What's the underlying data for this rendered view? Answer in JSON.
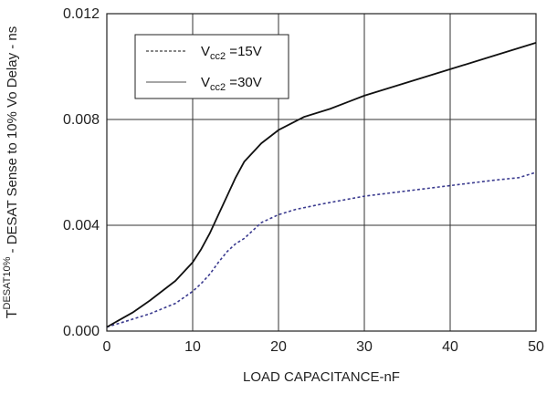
{
  "chart_data": {
    "type": "line",
    "title": "",
    "xlabel": "LOAD CAPACITANCE-nF",
    "ylabel": {
      "prefix": "T",
      "sup": "DESAT10%",
      "text": " - DESAT Sense to 10% Vo Delay - ns"
    },
    "xlim": [
      0,
      50
    ],
    "ylim": [
      0,
      0.012
    ],
    "x_ticks": [
      0,
      10,
      20,
      30,
      40,
      50
    ],
    "x_tick_labels": [
      "0",
      "10",
      "20",
      "30",
      "40",
      "50"
    ],
    "y_ticks": [
      0,
      0.004,
      0.008,
      0.012
    ],
    "y_tick_labels": [
      "0.000",
      "0.004",
      "0.008",
      "0.012"
    ],
    "grid": true,
    "legend_position": "top-left",
    "series": [
      {
        "legend_dash": "-------",
        "legend_main": "V",
        "legend_sub": "cc2",
        "legend_tail": " =15V",
        "color": "#3b3b8f",
        "style": "dashed",
        "x": [
          0,
          2,
          5,
          8,
          10,
          11,
          12,
          13,
          14,
          15,
          16,
          18,
          20,
          22,
          25,
          30,
          35,
          40,
          45,
          48,
          50
        ],
        "y": [
          0.00015,
          0.00035,
          0.00065,
          0.00105,
          0.0015,
          0.0018,
          0.00215,
          0.0026,
          0.003,
          0.0033,
          0.0035,
          0.0041,
          0.0044,
          0.0046,
          0.0048,
          0.0051,
          0.0053,
          0.0055,
          0.0057,
          0.0058,
          0.006
        ]
      },
      {
        "legend_dash": "",
        "legend_main": "V",
        "legend_sub": "cc2",
        "legend_tail": " =30V",
        "color": "#111111",
        "style": "solid",
        "x": [
          0,
          3,
          5,
          8,
          10,
          11,
          12,
          13,
          14,
          15,
          16,
          18,
          20,
          23,
          26,
          30,
          35,
          40,
          45,
          50
        ],
        "y": [
          0.00015,
          0.0007,
          0.00115,
          0.0019,
          0.0026,
          0.0031,
          0.0037,
          0.0044,
          0.0051,
          0.0058,
          0.0064,
          0.0071,
          0.0076,
          0.0081,
          0.0084,
          0.0089,
          0.0094,
          0.0099,
          0.0104,
          0.0109
        ]
      }
    ]
  }
}
